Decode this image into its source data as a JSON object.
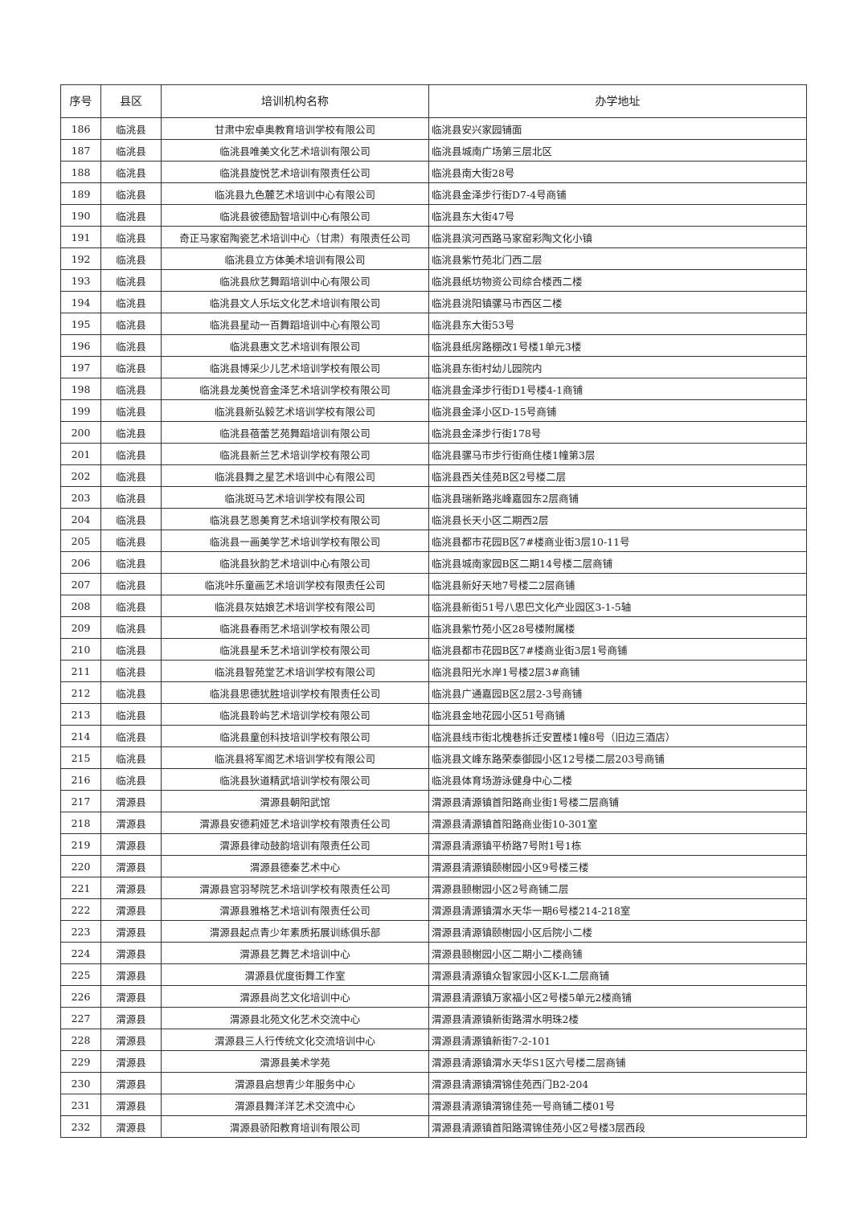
{
  "table": {
    "headers": [
      "序号",
      "县区",
      "培训机构名称",
      "办学地址"
    ],
    "rows": [
      [
        "186",
        "临洮县",
        "甘肃中宏卓奥教育培训学校有限公司",
        "临洮县安兴家园铺面"
      ],
      [
        "187",
        "临洮县",
        "临洮县唯美文化艺术培训有限公司",
        "临洮县城南广场第三层北区"
      ],
      [
        "188",
        "临洮县",
        "临洮县旋悦艺术培训有限责任公司",
        "临洮县南大街28号"
      ],
      [
        "189",
        "临洮县",
        "临洮县九色麓艺术培训中心有限公司",
        "临洮县金泽步行街D7-4号商铺"
      ],
      [
        "190",
        "临洮县",
        "临洮县彼德励智培训中心有限公司",
        "临洮县东大街47号"
      ],
      [
        "191",
        "临洮县",
        "奇正马家窑陶瓷艺术培训中心（甘肃）有限责任公司",
        "临洮县滨河西路马家窑彩陶文化小镇"
      ],
      [
        "192",
        "临洮县",
        "临洮县立方体美术培训有限公司",
        "临洮县紫竹苑北门西二层"
      ],
      [
        "193",
        "临洮县",
        "临洮县欣艺舞蹈培训中心有限公司",
        "临洮县纸坊物资公司综合楼西二楼"
      ],
      [
        "194",
        "临洮县",
        "临洮县文人乐坛文化艺术培训有限公司",
        "临洮县洮阳镇骡马市西区二楼"
      ],
      [
        "195",
        "临洮县",
        "临洮县星动一百舞蹈培训中心有限公司",
        "临洮县东大街53号"
      ],
      [
        "196",
        "临洮县",
        "临洮县惠文艺术培训有限公司",
        "临洮县纸房路棚改1号楼1单元3楼"
      ],
      [
        "197",
        "临洮县",
        "临洮县博采少儿艺术培训学校有限公司",
        "临洮县东街村幼儿园院内"
      ],
      [
        "198",
        "临洮县",
        "临洮县龙美悦音金泽艺术培训学校有限公司",
        "临洮县金泽步行街D1号楼4-1商铺"
      ],
      [
        "199",
        "临洮县",
        "临洮县新弘毅艺术培训学校有限公司",
        "临洮县金泽小区D-15号商铺"
      ],
      [
        "200",
        "临洮县",
        "临洮县蓓蕾艺苑舞蹈培训有限公司",
        "临洮县金泽步行街178号"
      ],
      [
        "201",
        "临洮县",
        "临洮县新兰艺术培训学校有限公司",
        "临洮县骡马市步行街商住楼1幢第3层"
      ],
      [
        "202",
        "临洮县",
        "临洮县舞之星艺术培训中心有限公司",
        "临洮县西关佳苑B区2号楼二层"
      ],
      [
        "203",
        "临洮县",
        "临洮斑马艺术培训学校有限公司",
        "临洮县瑞新路兆峰嘉园东2层商铺"
      ],
      [
        "204",
        "临洮县",
        "临洮县艺恩美育艺术培训学校有限公司",
        "临洮县长天小区二期西2层"
      ],
      [
        "205",
        "临洮县",
        "临洮县一画美学艺术培训学校有限公司",
        "临洮县都市花园B区7#楼商业街3层10-11号"
      ],
      [
        "206",
        "临洮县",
        "临洮县狄韵艺术培训中心有限公司",
        "临洮县城南家园B区二期14号楼二层商铺"
      ],
      [
        "207",
        "临洮县",
        "临洮咔乐童画艺术培训学校有限责任公司",
        "临洮县新好天地7号楼二2层商铺"
      ],
      [
        "208",
        "临洮县",
        "临洮县灰姑娘艺术培训学校有限公司",
        "临洮县新街51号八思巴文化产业园区3-1-5轴"
      ],
      [
        "209",
        "临洮县",
        "临洮县春雨艺术培训学校有限公司",
        "临洮县紫竹苑小区28号楼附属楼"
      ],
      [
        "210",
        "临洮县",
        "临洮县星禾艺术培训学校有限公司",
        "临洮县都市花园B区7#楼商业街3层1号商铺"
      ],
      [
        "211",
        "临洮县",
        "临洮县智苑堂艺术培训学校有限公司",
        "临洮县阳光水岸1号楼2层3#商铺"
      ],
      [
        "212",
        "临洮县",
        "临洮县思德犹胜培训学校有限责任公司",
        "临洮县广通嘉园B区2层2-3号商铺"
      ],
      [
        "213",
        "临洮县",
        "临洮县聆屿艺术培训学校有限公司",
        "临洮县金地花园小区51号商铺"
      ],
      [
        "214",
        "临洮县",
        "临洮县童创科技培训学校有限公司",
        "临洮县线市街北槐巷拆迁安置楼1幢8号（旧边三酒店）"
      ],
      [
        "215",
        "临洮县",
        "临洮县将军阁艺术培训学校有限公司",
        "临洮县文峰东路荣泰御园小区12号楼二层203号商铺"
      ],
      [
        "216",
        "临洮县",
        "临洮县狄道精武培训学校有限公司",
        "临洮县体育场游泳健身中心二楼"
      ],
      [
        "217",
        "渭源县",
        "渭源县朝阳武馆",
        "渭源县清源镇首阳路商业街1号楼二层商铺"
      ],
      [
        "218",
        "渭源县",
        "渭源县安德莉娅艺术培训学校有限责任公司",
        "渭源县清源镇首阳路商业街10-301室"
      ],
      [
        "219",
        "渭源县",
        "渭源县律动鼓韵培训有限责任公司",
        "渭源县清源镇平桥路7号附1号1栋"
      ],
      [
        "220",
        "渭源县",
        "渭源县德秦艺术中心",
        "渭源县清源镇颐榭园小区9号楼三楼"
      ],
      [
        "221",
        "渭源县",
        "渭源县宫羽琴院艺术培训学校有限责任公司",
        "渭源县颐榭园小区2号商铺二层"
      ],
      [
        "222",
        "渭源县",
        "渭源县雅格艺术培训有限责任公司",
        "渭源县清源镇渭水天华一期6号楼214-218室"
      ],
      [
        "223",
        "渭源县",
        "渭源县起点青少年素质拓展训练俱乐部",
        "渭源县清源镇颐榭园小区后院小二楼"
      ],
      [
        "224",
        "渭源县",
        "渭源县艺舞艺术培训中心",
        "渭源县颐榭园小区二期小二楼商铺"
      ],
      [
        "225",
        "渭源县",
        "渭源县优度街舞工作室",
        "渭源县清源镇众智家园小区K-L二层商铺"
      ],
      [
        "226",
        "渭源县",
        "渭源县尚艺文化培训中心",
        "渭源县清源镇万家福小区2号楼5单元2楼商铺"
      ],
      [
        "227",
        "渭源县",
        "渭源县北苑文化艺术交流中心",
        "渭源县清源镇新街路渭水明珠2楼"
      ],
      [
        "228",
        "渭源县",
        "渭源县三人行传统文化交流培训中心",
        "渭源县清源镇新街7-2-101"
      ],
      [
        "229",
        "渭源县",
        "渭源县美术学苑",
        "渭源县清源镇渭水天华S1区六号楼二层商铺"
      ],
      [
        "230",
        "渭源县",
        "渭源县启想青少年服务中心",
        "渭源县清源镇渭锦佳苑西门B2-204"
      ],
      [
        "231",
        "渭源县",
        "渭源县舞洋洋艺术交流中心",
        "渭源县清源镇渭锦佳苑一号商铺二楼01号"
      ],
      [
        "232",
        "渭源县",
        "渭源县骄阳教育培训有限公司",
        "渭源县清源镇首阳路渭锦佳苑小区2号楼3层西段"
      ]
    ]
  }
}
